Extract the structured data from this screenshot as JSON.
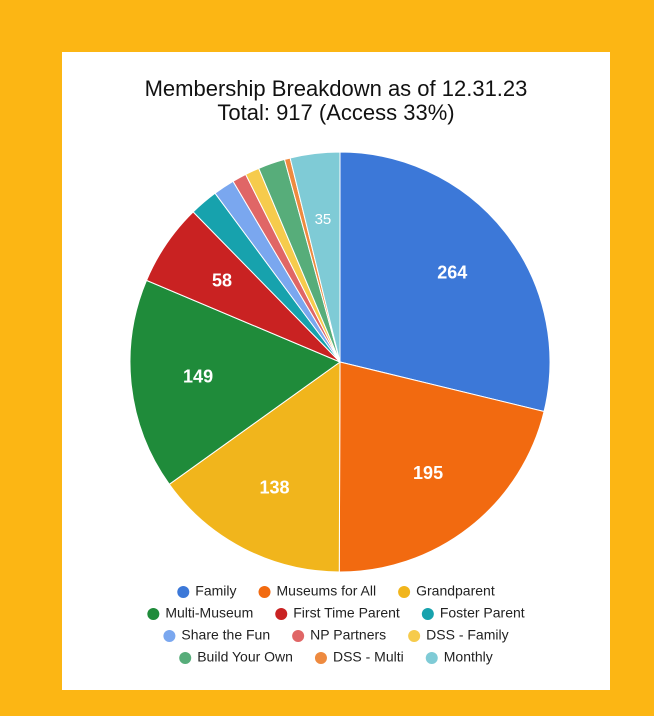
{
  "chart_data": {
    "type": "pie",
    "title": "Membership Breakdown as of 12.31.23",
    "subtitle": "Total: 917 (Access 33%)",
    "categories": [
      "Family",
      "Museums for All",
      "Grandparent",
      "Multi-Museum",
      "First Time Parent",
      "Foster Parent",
      "Share the Fun",
      "NP Partners",
      "DSS - Family",
      "Build Your Own",
      "DSS - Multi",
      "Monthly"
    ],
    "values": [
      264,
      195,
      138,
      149,
      58,
      20,
      15,
      10,
      10,
      19,
      4,
      35
    ],
    "colors": [
      "#3c78d8",
      "#f26a10",
      "#f1b51c",
      "#1f8b3a",
      "#c92222",
      "#17a2ad",
      "#7aa7ef",
      "#e06666",
      "#f6cb4c",
      "#57ad7a",
      "#ee8a3f",
      "#7fcbd6"
    ],
    "legend": "bottom"
  }
}
